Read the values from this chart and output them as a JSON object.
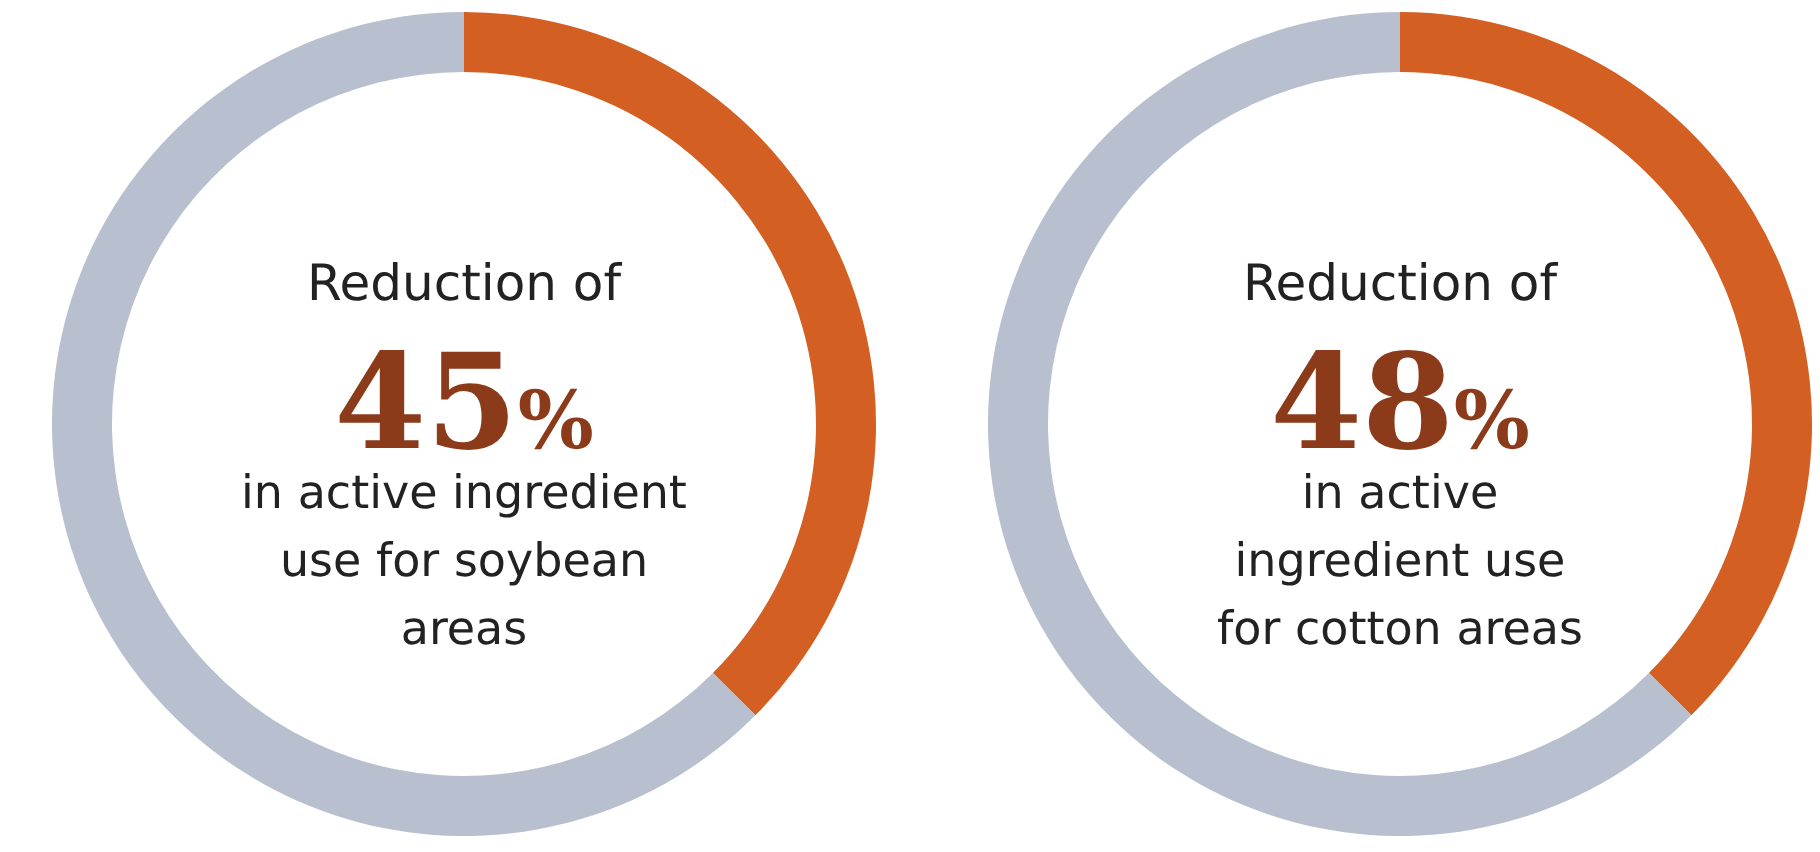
{
  "chart_data": [
    {
      "type": "donut",
      "categories": [
        null,
        null
      ],
      "values": [
        37.5,
        62.5
      ],
      "colors": [
        "#d35f22",
        "#b8bfcf"
      ],
      "annotations": [
        "Reduction of",
        "45%",
        "in active ingredient\nuse for soybean\nareas"
      ]
    },
    {
      "type": "donut",
      "categories": [
        null,
        null
      ],
      "values": [
        37.5,
        62.5
      ],
      "colors": [
        "#d35f22",
        "#b8bfcf"
      ],
      "annotations": [
        "Reduction of",
        "48%",
        "in active\ningredient use\nfor cotton areas"
      ]
    }
  ]
}
